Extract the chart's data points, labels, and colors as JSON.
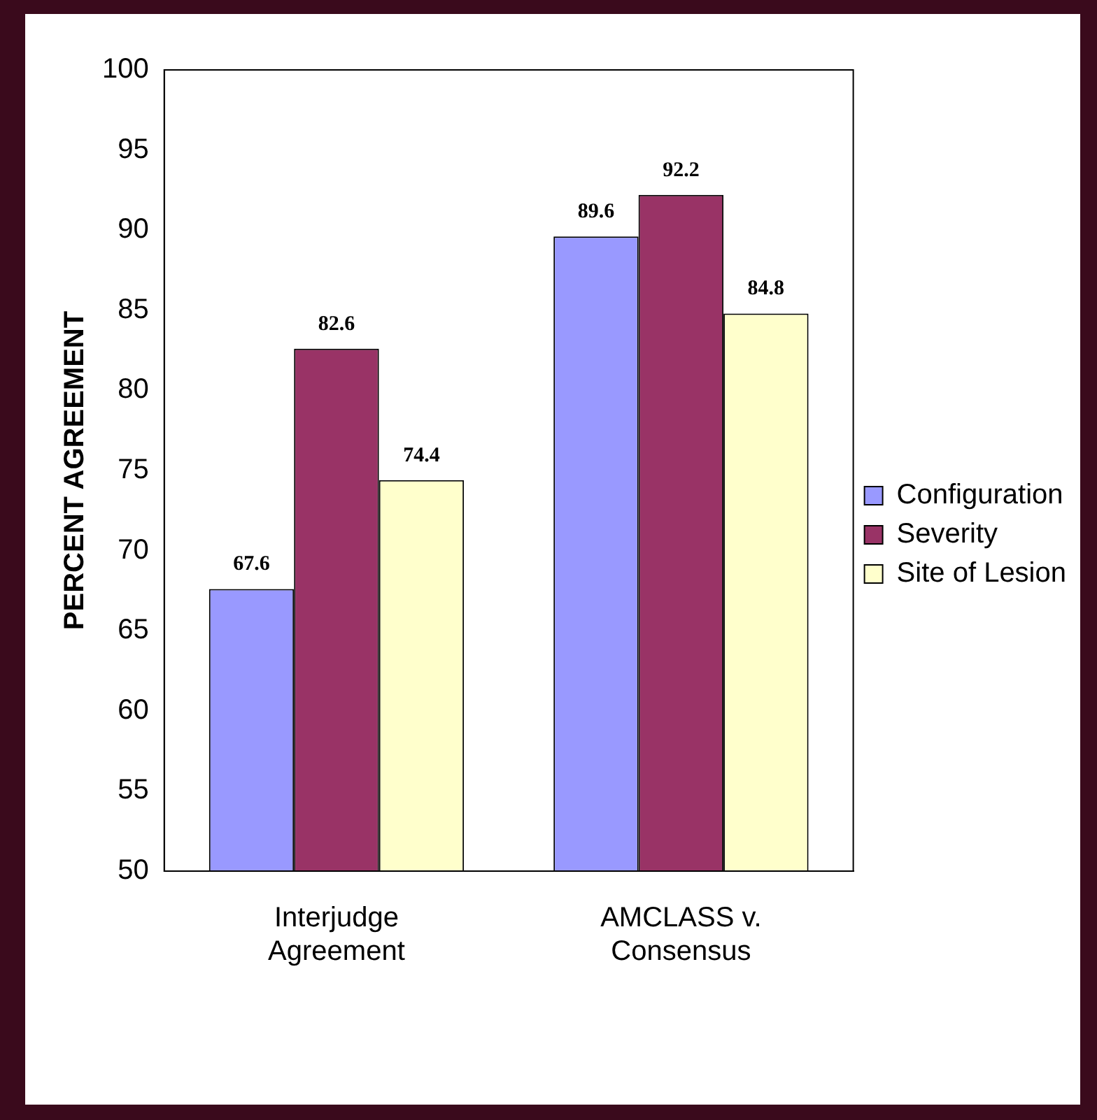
{
  "chart_data": {
    "type": "bar",
    "ylabel": "PERCENT AGREEMENT",
    "categories": [
      "Interjudge Agreement",
      "AMCLASS v. Consensus"
    ],
    "series": [
      {
        "name": "Configuration",
        "color": "#9999ff",
        "values": [
          67.6,
          89.6
        ]
      },
      {
        "name": "Severity",
        "color": "#993366",
        "values": [
          82.6,
          92.2
        ]
      },
      {
        "name": "Site of Lesion",
        "color": "#ffffcc",
        "values": [
          74.4,
          84.8
        ]
      }
    ],
    "ylim": [
      50,
      100
    ],
    "yticks": [
      50,
      55,
      60,
      65,
      70,
      75,
      80,
      85,
      90,
      95,
      100
    ],
    "grid": false,
    "legend": "right",
    "data_labels": true
  }
}
